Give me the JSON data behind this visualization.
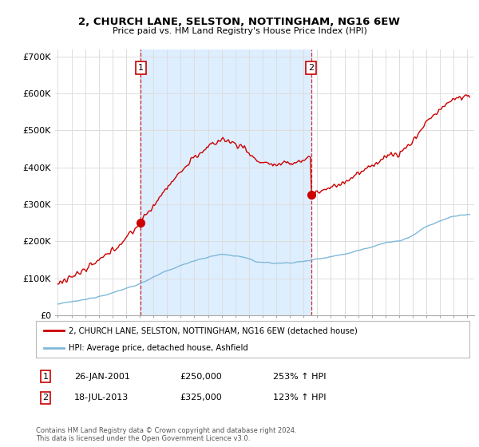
{
  "title": "2, CHURCH LANE, SELSTON, NOTTINGHAM, NG16 6EW",
  "subtitle": "Price paid vs. HM Land Registry's House Price Index (HPI)",
  "ylim": [
    0,
    720000
  ],
  "yticks": [
    0,
    100000,
    200000,
    300000,
    400000,
    500000,
    600000,
    700000
  ],
  "ytick_labels": [
    "£0",
    "£100K",
    "£200K",
    "£300K",
    "£400K",
    "£500K",
    "£600K",
    "£700K"
  ],
  "hpi_color": "#7fb8d8",
  "price_color": "#cc0000",
  "shade_color": "#ddeeff",
  "sale1_date": 2001.08,
  "sale1_price": 250000,
  "sale2_date": 2013.55,
  "sale2_price": 325000,
  "legend_line1": "2, CHURCH LANE, SELSTON, NOTTINGHAM, NG16 6EW (detached house)",
  "legend_line2": "HPI: Average price, detached house, Ashfield",
  "table_row1": [
    "1",
    "26-JAN-2001",
    "£250,000",
    "253% ↑ HPI"
  ],
  "table_row2": [
    "2",
    "18-JUL-2013",
    "£325,000",
    "123% ↑ HPI"
  ],
  "footer": "Contains HM Land Registry data © Crown copyright and database right 2024.\nThis data is licensed under the Open Government Licence v3.0.",
  "background_color": "#ffffff",
  "grid_color": "#dddddd"
}
